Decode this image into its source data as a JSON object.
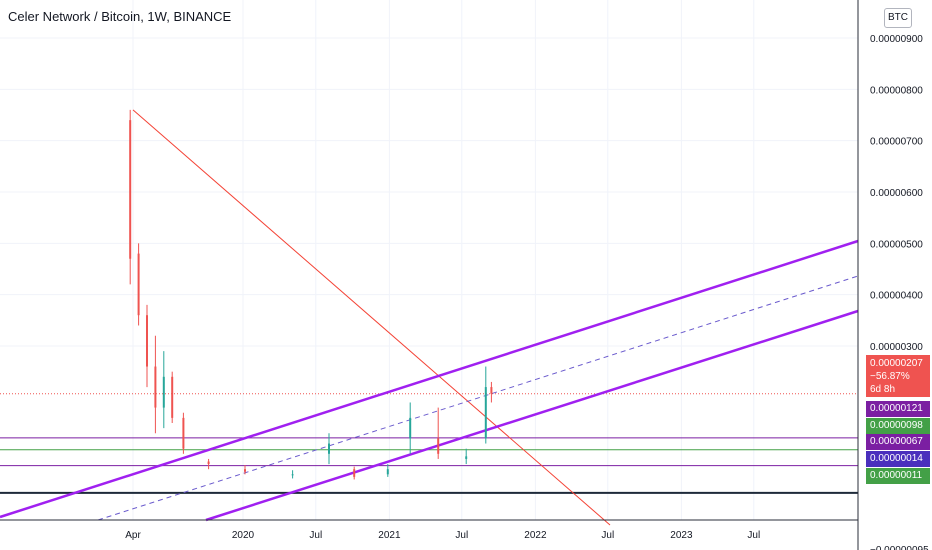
{
  "header": {
    "title": "Celer Network / Bitcoin, 1W, BINANCE",
    "currency_badge": "BTC"
  },
  "price_axis": {
    "ticks": [
      "0.00000900",
      "0.00000800",
      "0.00000700",
      "0.00000600",
      "0.00000500",
      "0.00000400",
      "0.00000300",
      "−0.00000095"
    ]
  },
  "time_axis": {
    "ticks": [
      "Apr",
      "2020",
      "Jul",
      "2021",
      "Jul",
      "2022",
      "Jul",
      "2023",
      "Jul"
    ]
  },
  "current_price": {
    "value": "0.00000207",
    "change": "−56.87%",
    "countdown": "6d 8h"
  },
  "level_labels": [
    {
      "value": "0.00000121",
      "color": "#7b1fa2"
    },
    {
      "value": "0.00000098",
      "color": "#43a047"
    },
    {
      "value": "0.00000067",
      "color": "#7b1fa2"
    },
    {
      "value": "0.00000014",
      "color": "#4a2fbd"
    },
    {
      "value": "0.00000011",
      "color": "#43a047"
    }
  ],
  "chart_data": {
    "type": "candlestick",
    "symbol": "Celer Network / Bitcoin",
    "interval": "1W",
    "exchange": "BINANCE",
    "y_axis_unit": "BTC",
    "ylim": [
      -9.5e-07,
      9.5e-06
    ],
    "x_ticks": [
      "Apr",
      "2020",
      "Jul",
      "2021",
      "Jul",
      "2022",
      "Jul",
      "2023",
      "Jul"
    ],
    "candles_approx": [
      {
        "t": "2019-03-25",
        "o": 7.4e-06,
        "h": 7.6e-06,
        "l": 4.2e-06,
        "c": 4.7e-06
      },
      {
        "t": "2019-04-15",
        "o": 4.8e-06,
        "h": 5e-06,
        "l": 3.4e-06,
        "c": 3.6e-06
      },
      {
        "t": "2019-05-06",
        "o": 3.6e-06,
        "h": 3.8e-06,
        "l": 2.2e-06,
        "c": 2.6e-06
      },
      {
        "t": "2019-05-27",
        "o": 2.6e-06,
        "h": 3.2e-06,
        "l": 1.3e-06,
        "c": 1.8e-06
      },
      {
        "t": "2019-06-17",
        "o": 1.8e-06,
        "h": 2.9e-06,
        "l": 1.4e-06,
        "c": 2.4e-06
      },
      {
        "t": "2019-07-08",
        "o": 2.4e-06,
        "h": 2.5e-06,
        "l": 1.5e-06,
        "c": 1.6e-06
      },
      {
        "t": "2019-08-05",
        "o": 1.6e-06,
        "h": 1.7e-06,
        "l": 9e-07,
        "c": 1e-06
      },
      {
        "t": "2019-10-07",
        "o": 7.5e-07,
        "h": 8e-07,
        "l": 6e-07,
        "c": 7e-07
      },
      {
        "t": "2020-01-06",
        "o": 6e-07,
        "h": 6.8e-07,
        "l": 5e-07,
        "c": 5.5e-07
      },
      {
        "t": "2020-05-04",
        "o": 5e-07,
        "h": 5.8e-07,
        "l": 4.2e-07,
        "c": 5e-07
      },
      {
        "t": "2020-08-03",
        "o": 9e-07,
        "h": 1.3e-06,
        "l": 7e-07,
        "c": 1.1e-06
      },
      {
        "t": "2020-10-05",
        "o": 6e-07,
        "h": 6.5e-07,
        "l": 4e-07,
        "c": 4.5e-07
      },
      {
        "t": "2020-12-28",
        "o": 5e-07,
        "h": 7e-07,
        "l": 4.5e-07,
        "c": 6e-07
      },
      {
        "t": "2021-02-22",
        "o": 1.2e-06,
        "h": 1.9e-06,
        "l": 9e-07,
        "c": 1.6e-06
      },
      {
        "t": "2021-05-03",
        "o": 1.2e-06,
        "h": 1.8e-06,
        "l": 8e-07,
        "c": 9e-07
      },
      {
        "t": "2021-07-12",
        "o": 8e-07,
        "h": 1e-06,
        "l": 7e-07,
        "c": 8.5e-07
      },
      {
        "t": "2021-08-30",
        "o": 1.2e-06,
        "h": 2.6e-06,
        "l": 1.1e-06,
        "c": 2.2e-06
      },
      {
        "t": "2021-09-13",
        "o": 2.2e-06,
        "h": 2.3e-06,
        "l": 1.9e-06,
        "c": 2.07e-06
      }
    ],
    "horizontal_levels": [
      1.21e-06,
      9.8e-07,
      6.7e-07,
      1.4e-07
    ],
    "current_price": 2.07e-06,
    "change_percent": "−56.87%"
  }
}
